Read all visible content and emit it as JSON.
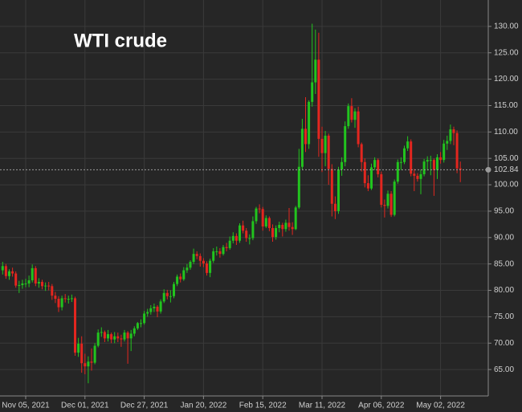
{
  "chart_data": {
    "type": "candlestick",
    "title": "WTI crude",
    "categories": [
      null,
      null,
      null,
      null,
      null,
      null,
      null,
      "Nov 05, 2021",
      null,
      null,
      null,
      null,
      null,
      null,
      null,
      null,
      null,
      null,
      null,
      null,
      null,
      null,
      null,
      null,
      null,
      "Dec 01, 2021",
      null,
      null,
      null,
      null,
      null,
      null,
      null,
      null,
      null,
      null,
      null,
      null,
      null,
      null,
      null,
      null,
      null,
      "Dec 27, 2021",
      null,
      null,
      null,
      null,
      null,
      null,
      null,
      null,
      null,
      null,
      null,
      null,
      null,
      null,
      null,
      null,
      null,
      "Jan 20, 2022",
      null,
      null,
      null,
      null,
      null,
      null,
      null,
      null,
      null,
      null,
      null,
      null,
      null,
      null,
      null,
      null,
      null,
      "Feb 15, 2022",
      null,
      null,
      null,
      null,
      null,
      null,
      null,
      null,
      null,
      null,
      null,
      null,
      null,
      null,
      null,
      null,
      null,
      "Mar 11, 2022",
      null,
      null,
      null,
      null,
      null,
      null,
      null,
      null,
      null,
      null,
      null,
      null,
      null,
      null,
      null,
      null,
      null,
      "Apr 06, 2022",
      null,
      null,
      null,
      null,
      null,
      null,
      null,
      null,
      null,
      null,
      null,
      null,
      null,
      null,
      null,
      null,
      null,
      "May 02, 2022",
      null,
      null,
      null,
      null,
      null,
      null
    ],
    "open": [
      83.8,
      84.6,
      82.7,
      83.6,
      83.2,
      80.9,
      81.0,
      81.3,
      81.3,
      81.9,
      84.2,
      81.3,
      81.6,
      80.8,
      80.9,
      80.8,
      79.0,
      78.4,
      76.8,
      78.5,
      78.4,
      78.4,
      78.5,
      68.2,
      69.9,
      66.2,
      65.6,
      66.5,
      66.3,
      69.5,
      72.0,
      72.1,
      70.9,
      71.7,
      70.7,
      71.3,
      70.9,
      70.7,
      72.0,
      70.9,
      71.8,
      72.8,
      73.8,
      73.8,
      75.6,
      75.9,
      76.6,
      76.9,
      76.0,
      77.9,
      79.5,
      78.9,
      78.9,
      81.2,
      82.6,
      82.1,
      83.8,
      84.3,
      85.4,
      86.9,
      86.5,
      85.6,
      85.1,
      83.3,
      85.6,
      87.4,
      87.4,
      86.9,
      88.2,
      88.0,
      89.4,
      90.3,
      89.4,
      92.3,
      91.3,
      89.9,
      89.9,
      93.1,
      95.5,
      95.4,
      92.1,
      93.7,
      91.8,
      90.1,
      91.8,
      92.4,
      91.6,
      92.8,
      92.0,
      91.6,
      95.7,
      103.4,
      110.6,
      107.7,
      115.7,
      119.4,
      123.7,
      108.7,
      106.0,
      109.3,
      103.0,
      96.4,
      95.0,
      102.9,
      104.3,
      111.1,
      114.9,
      112.3,
      113.9,
      107.7,
      104.3,
      100.3,
      99.3,
      103.3,
      104.7,
      102.0,
      96.2,
      96.0,
      98.3,
      94.3,
      100.6,
      104.3,
      104.3,
      106.9,
      108.2,
      102.1,
      101.7,
      101.1,
      102.0,
      104.4,
      104.7,
      104.7,
      102.8,
      105.2,
      104.7,
      107.8,
      108.3,
      110.5,
      109.8,
      103.1
    ],
    "high": [
      85.4,
      85.0,
      84.0,
      84.3,
      83.6,
      81.8,
      82.0,
      82.2,
      82.8,
      84.9,
      84.6,
      82.3,
      82.0,
      81.5,
      81.6,
      81.2,
      79.7,
      78.9,
      79.0,
      79.3,
      79.0,
      79.2,
      78.8,
      71.0,
      71.3,
      68.0,
      67.5,
      69.0,
      70.0,
      72.6,
      73.0,
      72.4,
      72.5,
      72.0,
      72.1,
      72.0,
      71.6,
      72.5,
      72.3,
      72.5,
      73.2,
      74.0,
      74.5,
      76.1,
      76.5,
      77.2,
      77.5,
      77.2,
      78.3,
      80.2,
      80.1,
      80.0,
      81.6,
      83.0,
      83.2,
      84.4,
      85.0,
      85.7,
      87.9,
      87.4,
      87.0,
      86.1,
      85.5,
      86.0,
      88.0,
      88.3,
      88.0,
      88.6,
      89.0,
      90.2,
      91.0,
      90.8,
      92.7,
      93.2,
      91.8,
      90.6,
      94.0,
      95.8,
      96.3,
      95.8,
      94.2,
      94.0,
      92.5,
      92.3,
      93.0,
      92.8,
      93.4,
      95.6,
      92.9,
      96.0,
      106.8,
      112.5,
      116.6,
      116.0,
      130.5,
      129.4,
      128.8,
      111.0,
      110.2,
      109.7,
      103.9,
      97.8,
      103.4,
      105.2,
      112.0,
      115.4,
      116.4,
      114.5,
      114.8,
      108.0,
      105.0,
      101.8,
      104.0,
      105.2,
      105.0,
      102.5,
      97.2,
      98.9,
      98.8,
      101.0,
      104.8,
      105.2,
      107.4,
      109.2,
      108.6,
      103.0,
      102.2,
      102.9,
      104.9,
      105.4,
      105.5,
      105.0,
      105.8,
      106.2,
      108.5,
      109.3,
      111.4,
      111.0,
      110.3,
      104.4
    ],
    "low": [
      83.0,
      82.2,
      82.0,
      82.6,
      80.5,
      79.5,
      80.3,
      80.6,
      80.6,
      81.5,
      80.8,
      80.5,
      80.2,
      79.9,
      80.0,
      78.2,
      77.6,
      75.9,
      76.2,
      77.7,
      77.5,
      77.8,
      67.6,
      67.4,
      64.4,
      64.1,
      62.4,
      64.8,
      66.0,
      69.2,
      71.2,
      70.2,
      70.3,
      70.0,
      70.0,
      70.2,
      69.3,
      70.3,
      66.1,
      68.5,
      71.3,
      72.5,
      73.0,
      73.5,
      75.0,
      75.4,
      75.9,
      74.9,
      75.6,
      77.6,
      78.3,
      77.7,
      78.5,
      80.8,
      81.5,
      81.8,
      83.3,
      83.9,
      85.0,
      85.9,
      84.5,
      84.4,
      82.8,
      82.5,
      85.2,
      86.6,
      86.2,
      86.6,
      87.4,
      87.7,
      88.9,
      88.6,
      89.0,
      90.8,
      89.2,
      88.7,
      89.5,
      92.6,
      94.6,
      91.3,
      91.8,
      91.2,
      89.2,
      89.6,
      91.0,
      90.2,
      91.1,
      91.3,
      90.5,
      91.4,
      95.4,
      102.8,
      106.2,
      106.8,
      114.8,
      117.2,
      105.3,
      102.4,
      103.5,
      100.0,
      94.0,
      93.5,
      94.5,
      101.7,
      103.5,
      110.6,
      111.8,
      110.8,
      107.1,
      102.5,
      99.5,
      98.8,
      99.0,
      102.8,
      101.4,
      95.7,
      93.8,
      95.5,
      93.9,
      94.0,
      100.2,
      102.8,
      103.9,
      106.4,
      101.6,
      98.8,
      100.6,
      98.2,
      101.6,
      102.7,
      101.8,
      97.9,
      101.1,
      104.0,
      104.2,
      106.6,
      107.7,
      107.5,
      102.2,
      100.5
    ],
    "close": [
      84.6,
      82.7,
      83.6,
      83.2,
      80.9,
      81.0,
      81.3,
      81.3,
      81.9,
      84.2,
      81.3,
      81.6,
      80.8,
      80.9,
      80.8,
      79.0,
      78.4,
      76.8,
      78.5,
      78.4,
      78.4,
      78.5,
      68.2,
      69.9,
      66.2,
      65.6,
      66.5,
      66.3,
      69.5,
      72.0,
      72.1,
      70.9,
      71.7,
      70.7,
      71.3,
      70.9,
      70.7,
      72.0,
      70.9,
      71.8,
      72.8,
      73.8,
      73.8,
      75.6,
      75.9,
      76.6,
      76.9,
      76.0,
      77.9,
      79.5,
      78.9,
      78.9,
      81.2,
      82.6,
      82.1,
      83.8,
      84.3,
      85.4,
      86.9,
      86.5,
      85.6,
      85.1,
      83.3,
      85.6,
      87.4,
      87.4,
      86.9,
      88.2,
      88.0,
      89.4,
      90.3,
      89.4,
      92.3,
      91.3,
      89.9,
      89.9,
      93.1,
      95.5,
      95.4,
      92.1,
      93.7,
      91.8,
      90.1,
      91.8,
      92.4,
      91.6,
      92.8,
      92.0,
      91.6,
      95.7,
      103.4,
      110.6,
      107.7,
      115.7,
      119.4,
      123.7,
      108.7,
      106.0,
      109.3,
      103.0,
      96.4,
      95.0,
      102.9,
      104.3,
      111.1,
      114.9,
      112.3,
      113.9,
      107.7,
      104.3,
      100.3,
      99.3,
      103.3,
      104.7,
      102.0,
      96.2,
      96.0,
      98.3,
      94.3,
      100.6,
      104.3,
      104.3,
      106.9,
      108.2,
      102.1,
      101.7,
      101.1,
      102.0,
      104.4,
      104.7,
      104.7,
      102.8,
      105.2,
      104.7,
      107.8,
      108.3,
      110.5,
      109.8,
      103.1,
      102.84
    ],
    "up_color": "#22c41e",
    "down_color": "#e3261f",
    "last_price": 102.84,
    "ylim": [
      60,
      135
    ],
    "yticks": [
      {
        "value": 65,
        "label": "65.00"
      },
      {
        "value": 70,
        "label": "70.00"
      },
      {
        "value": 75,
        "label": "75.00"
      },
      {
        "value": 80,
        "label": "80.00"
      },
      {
        "value": 85,
        "label": "85.00"
      },
      {
        "value": 90,
        "label": "90.00"
      },
      {
        "value": 95,
        "label": "95.00"
      },
      {
        "value": 100,
        "label": "100.00"
      },
      {
        "value": 105,
        "label": "105.00"
      },
      {
        "value": 110,
        "label": "110.00"
      },
      {
        "value": 115,
        "label": "115.00"
      },
      {
        "value": 120,
        "label": "120.00"
      },
      {
        "value": 125,
        "label": "125.00"
      },
      {
        "value": 130,
        "label": "130.00"
      }
    ],
    "grid": true
  }
}
